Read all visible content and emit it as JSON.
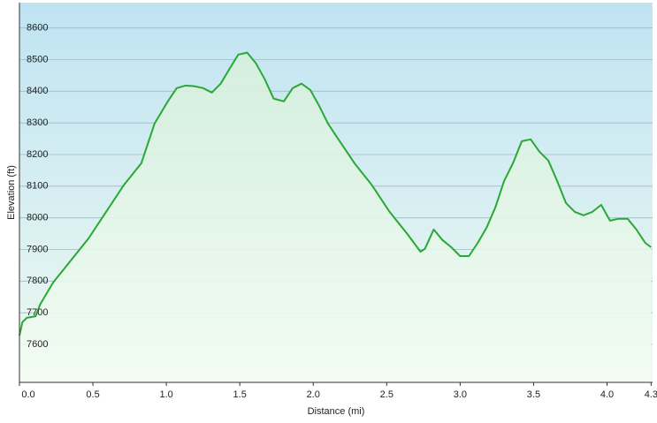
{
  "chart_data": {
    "type": "area",
    "x_label": "Distance  (mi)",
    "y_label": "Elevation (ft)",
    "xlim": [
      0,
      4.31
    ],
    "ylim": [
      7480,
      8680
    ],
    "xticks": [
      {
        "value": 0,
        "label": "0.0"
      },
      0.5,
      {
        "value": 1,
        "label": "1.0"
      },
      1.5,
      {
        "value": 2,
        "label": "2.0"
      },
      2.5,
      {
        "value": 3,
        "label": "3.0"
      },
      3.5,
      {
        "value": 4,
        "label": "4.0"
      },
      4.3
    ],
    "yticks": [
      7600,
      7700,
      7800,
      7900,
      8000,
      8100,
      8200,
      8300,
      8400,
      8500,
      8600
    ],
    "grid": true,
    "color": "#2aa836",
    "x": [
      0,
      0.02,
      0.05,
      0.11,
      0.14,
      0.23,
      0.35,
      0.47,
      0.59,
      0.71,
      0.83,
      0.92,
      1.01,
      1.07,
      1.13,
      1.19,
      1.25,
      1.31,
      1.37,
      1.43,
      1.49,
      1.55,
      1.61,
      1.67,
      1.73,
      1.8,
      1.86,
      1.92,
      1.98,
      2.04,
      2.1,
      2.16,
      2.28,
      2.4,
      2.52,
      2.64,
      2.73,
      2.76,
      2.82,
      2.88,
      2.94,
      3.0,
      3.06,
      3.12,
      3.18,
      3.24,
      3.3,
      3.36,
      3.42,
      3.48,
      3.54,
      3.6,
      3.66,
      3.72,
      3.78,
      3.84,
      3.9,
      3.96,
      4.02,
      4.08,
      4.14,
      4.2,
      4.26,
      4.3
    ],
    "values": [
      7628,
      7670,
      7684,
      7689,
      7726,
      7796,
      7865,
      7935,
      8019,
      8103,
      8173,
      8298,
      8368,
      8410,
      8418,
      8416,
      8410,
      8396,
      8424,
      8471,
      8516,
      8522,
      8488,
      8438,
      8377,
      8368,
      8410,
      8424,
      8404,
      8354,
      8298,
      8256,
      8173,
      8103,
      8019,
      7949,
      7893,
      7902,
      7963,
      7930,
      7907,
      7879,
      7879,
      7921,
      7969,
      8033,
      8117,
      8173,
      8242,
      8248,
      8209,
      8181,
      8117,
      8047,
      8019,
      8008,
      8019,
      8041,
      7991,
      7997,
      7997,
      7963,
      7921,
      7907
    ]
  }
}
